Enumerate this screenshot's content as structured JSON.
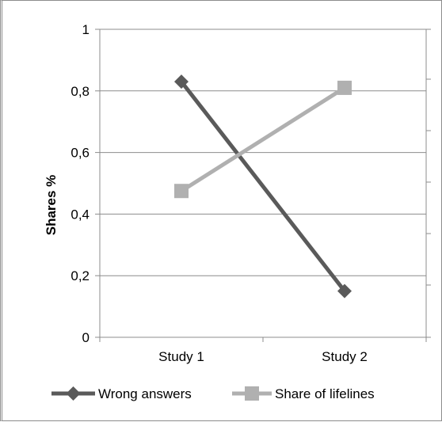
{
  "chart_data": {
    "type": "line",
    "categories": [
      "Study 1",
      "Study 2"
    ],
    "series": [
      {
        "name": "Wrong answers",
        "values": [
          0.83,
          0.15
        ],
        "color": "#5a5a5a",
        "marker": "diamond"
      },
      {
        "name": "Share of lifelines",
        "values": [
          0.475,
          0.81
        ],
        "color": "#b0b0b0",
        "marker": "square"
      }
    ],
    "ylabel": "Shares %",
    "xlabel": "",
    "ylim": [
      0,
      1
    ],
    "yticks": [
      0,
      0.2,
      0.4,
      0.6,
      0.8,
      1
    ],
    "ytick_labels": [
      "0",
      "0,2",
      "0,4",
      "0,6",
      "0,8",
      "1"
    ],
    "secondary_yaxis": "right, unlabeled ticks",
    "grid": true,
    "legend_position": "bottom"
  }
}
